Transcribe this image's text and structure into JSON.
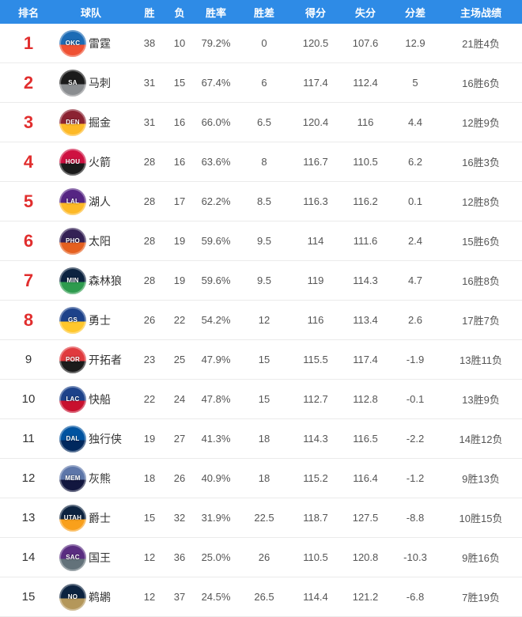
{
  "colors": {
    "header_bg": "#2e8be6",
    "rank_highlight": "#e12e2e",
    "row_border": "#ebebeb",
    "team_text": "#333333",
    "stat_text": "#555555"
  },
  "table": {
    "headers": [
      "排名",
      "球队",
      "胜",
      "负",
      "胜率",
      "胜差",
      "得分",
      "失分",
      "分差",
      "主场战绩"
    ],
    "rows": [
      {
        "rank": "1",
        "team": "雷霆",
        "abbr": "OKC",
        "top8": true,
        "logo_colors": [
          "#1c6bb5",
          "#ef5133"
        ],
        "wins": "38",
        "losses": "10",
        "pct": "79.2%",
        "gb": "0",
        "pf": "120.5",
        "pa": "107.6",
        "diff": "12.9",
        "home": "21胜4负"
      },
      {
        "rank": "2",
        "team": "马刺",
        "abbr": "SA",
        "top8": true,
        "logo_colors": [
          "#1b1b1b",
          "#8a8d90"
        ],
        "wins": "31",
        "losses": "15",
        "pct": "67.4%",
        "gb": "6",
        "pf": "117.4",
        "pa": "112.4",
        "diff": "5",
        "home": "16胜6负"
      },
      {
        "rank": "3",
        "team": "掘金",
        "abbr": "DEN",
        "top8": true,
        "logo_colors": [
          "#8b2332",
          "#fdb927"
        ],
        "wins": "31",
        "losses": "16",
        "pct": "66.0%",
        "gb": "6.5",
        "pf": "120.4",
        "pa": "116",
        "diff": "4.4",
        "home": "12胜9负"
      },
      {
        "rank": "4",
        "team": "火箭",
        "abbr": "HOU",
        "top8": true,
        "logo_colors": [
          "#ce1141",
          "#1b1b1b"
        ],
        "wins": "28",
        "losses": "16",
        "pct": "63.6%",
        "gb": "8",
        "pf": "116.7",
        "pa": "110.5",
        "diff": "6.2",
        "home": "16胜3负"
      },
      {
        "rank": "5",
        "team": "湖人",
        "abbr": "LAL",
        "top8": true,
        "logo_colors": [
          "#552583",
          "#fdb927"
        ],
        "wins": "28",
        "losses": "17",
        "pct": "62.2%",
        "gb": "8.5",
        "pf": "116.3",
        "pa": "116.2",
        "diff": "0.1",
        "home": "12胜8负"
      },
      {
        "rank": "6",
        "team": "太阳",
        "abbr": "PHO",
        "top8": true,
        "logo_colors": [
          "#342155",
          "#e56020"
        ],
        "wins": "28",
        "losses": "19",
        "pct": "59.6%",
        "gb": "9.5",
        "pf": "114",
        "pa": "111.6",
        "diff": "2.4",
        "home": "15胜6负"
      },
      {
        "rank": "7",
        "team": "森林狼",
        "abbr": "MIN",
        "top8": true,
        "logo_colors": [
          "#0c2340",
          "#2e9b4e"
        ],
        "wins": "28",
        "losses": "19",
        "pct": "59.6%",
        "gb": "9.5",
        "pf": "119",
        "pa": "114.3",
        "diff": "4.7",
        "home": "16胜8负"
      },
      {
        "rank": "8",
        "team": "勇士",
        "abbr": "GS",
        "top8": true,
        "logo_colors": [
          "#1d428a",
          "#ffc72c"
        ],
        "wins": "26",
        "losses": "22",
        "pct": "54.2%",
        "gb": "12",
        "pf": "116",
        "pa": "113.4",
        "diff": "2.6",
        "home": "17胜7负"
      },
      {
        "rank": "9",
        "team": "开拓者",
        "abbr": "POR",
        "top8": false,
        "logo_colors": [
          "#e03a3e",
          "#1b1b1b"
        ],
        "wins": "23",
        "losses": "25",
        "pct": "47.9%",
        "gb": "15",
        "pf": "115.5",
        "pa": "117.4",
        "diff": "-1.9",
        "home": "13胜11负"
      },
      {
        "rank": "10",
        "team": "快船",
        "abbr": "LAC",
        "top8": false,
        "logo_colors": [
          "#1d428a",
          "#c8102e"
        ],
        "wins": "22",
        "losses": "24",
        "pct": "47.8%",
        "gb": "15",
        "pf": "112.7",
        "pa": "112.8",
        "diff": "-0.1",
        "home": "13胜9负"
      },
      {
        "rank": "11",
        "team": "独行侠",
        "abbr": "DAL",
        "top8": false,
        "logo_colors": [
          "#0053a0",
          "#00285e"
        ],
        "wins": "19",
        "losses": "27",
        "pct": "41.3%",
        "gb": "18",
        "pf": "114.3",
        "pa": "116.5",
        "diff": "-2.2",
        "home": "14胜12负"
      },
      {
        "rank": "12",
        "team": "灰熊",
        "abbr": "MEM",
        "top8": false,
        "logo_colors": [
          "#5d76a9",
          "#12173f"
        ],
        "wins": "18",
        "losses": "26",
        "pct": "40.9%",
        "gb": "18",
        "pf": "115.2",
        "pa": "116.4",
        "diff": "-1.2",
        "home": "9胜13负"
      },
      {
        "rank": "13",
        "team": "爵士",
        "abbr": "UTAH",
        "top8": false,
        "logo_colors": [
          "#0c2340",
          "#f9a01b"
        ],
        "wins": "15",
        "losses": "32",
        "pct": "31.9%",
        "gb": "22.5",
        "pf": "118.7",
        "pa": "127.5",
        "diff": "-8.8",
        "home": "10胜15负"
      },
      {
        "rank": "14",
        "team": "国王",
        "abbr": "SAC",
        "top8": false,
        "logo_colors": [
          "#5a2d81",
          "#63727a"
        ],
        "wins": "12",
        "losses": "36",
        "pct": "25.0%",
        "gb": "26",
        "pf": "110.5",
        "pa": "120.8",
        "diff": "-10.3",
        "home": "9胜16负"
      },
      {
        "rank": "15",
        "team": "鹈鹕",
        "abbr": "NO",
        "top8": false,
        "logo_colors": [
          "#0c2340",
          "#b4975a"
        ],
        "wins": "12",
        "losses": "37",
        "pct": "24.5%",
        "gb": "26.5",
        "pf": "114.4",
        "pa": "121.2",
        "diff": "-6.8",
        "home": "7胜19负"
      }
    ]
  }
}
